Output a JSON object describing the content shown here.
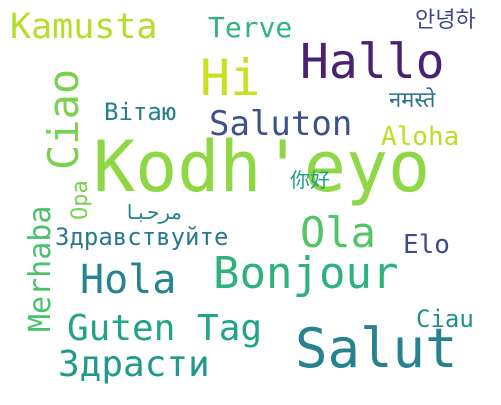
{
  "words": [
    {
      "text": "Kodh'eyo",
      "color": "#8fd744"
    },
    {
      "text": "Hi",
      "color": "#c8e020"
    },
    {
      "text": "Hallo",
      "color": "#482173"
    },
    {
      "text": "Kamusta",
      "color": "#b5de2b"
    },
    {
      "text": "Terve",
      "color": "#2fb47c"
    },
    {
      "text": "안녕하",
      "color": "#3e4a89"
    },
    {
      "text": "Ciao",
      "color": "#7ad151"
    },
    {
      "text": "Вітаю",
      "color": "#277f8e"
    },
    {
      "text": "Saluton",
      "color": "#3b528b"
    },
    {
      "text": "Aloha",
      "color": "#bddf26"
    },
    {
      "text": "नमस्ते",
      "color": "#2c728e"
    },
    {
      "text": "你好",
      "color": "#1f9e89"
    },
    {
      "text": "Opa",
      "color": "#7ad151"
    },
    {
      "text": "Merhaba",
      "color": "#4ac16d"
    },
    {
      "text": "مرحبا",
      "color": "#25848e"
    },
    {
      "text": "Здравствуйте",
      "color": "#29788e"
    },
    {
      "text": "Ola",
      "color": "#52c569"
    },
    {
      "text": "Elo",
      "color": "#3e4a89"
    },
    {
      "text": "Hola",
      "color": "#25848e"
    },
    {
      "text": "Bonjour",
      "color": "#2db27d"
    },
    {
      "text": "Guten Tag",
      "color": "#20a386"
    },
    {
      "text": "Ciau",
      "color": "#218f8d"
    },
    {
      "text": "Salut",
      "color": "#26828e"
    },
    {
      "text": "Здрасти",
      "color": "#1f998a"
    }
  ]
}
